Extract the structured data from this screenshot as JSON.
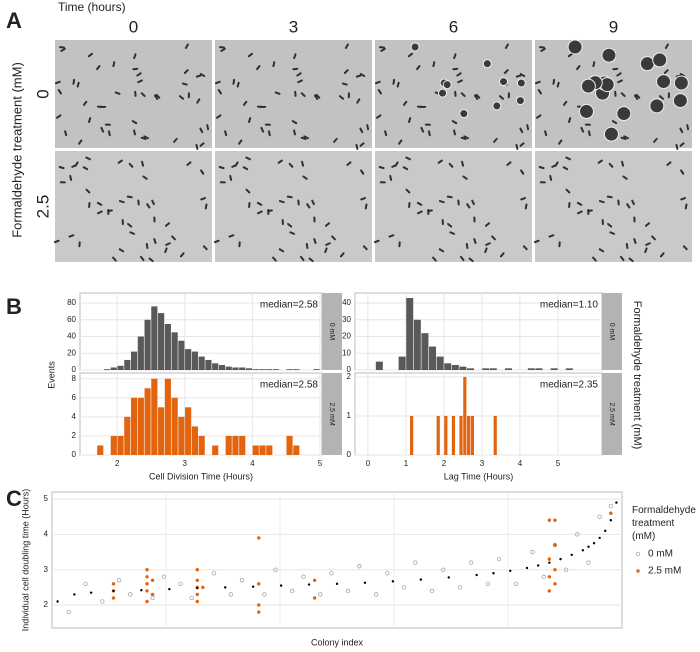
{
  "panel_a": {
    "label": "A",
    "x_title": "Time (hours)",
    "columns": [
      "0",
      "3",
      "6",
      "9"
    ],
    "y_title": "Formaldehyde treatment (mM)",
    "rows": [
      "0",
      "2.5"
    ]
  },
  "panel_b": {
    "label": "B",
    "y_label": "Events",
    "facet_title": "Formaldehyde treatment (mM)"
  },
  "panel_c": {
    "label": "C"
  },
  "chart_data": [
    {
      "type": "histogram",
      "facet": "0 mM",
      "annotation": "median=2.58",
      "color": "#595959",
      "bins": [
        1.6,
        1.7,
        1.8,
        1.9,
        2.0,
        2.1,
        2.2,
        2.3,
        2.4,
        2.5,
        2.6,
        2.7,
        2.8,
        2.9,
        3.0,
        3.1,
        3.2,
        3.3,
        3.4,
        3.5,
        3.6,
        3.7,
        3.8,
        3.9,
        4.0,
        4.1,
        4.2,
        4.3,
        4.4,
        4.5,
        4.6,
        4.7,
        4.8,
        4.9,
        5.0
      ],
      "values": [
        0,
        0,
        1,
        3,
        5,
        12,
        22,
        40,
        60,
        76,
        68,
        55,
        45,
        35,
        25,
        22,
        16,
        12,
        8,
        6,
        4,
        3,
        3,
        2,
        1,
        1,
        1,
        1,
        0,
        1,
        1,
        0,
        0,
        1
      ],
      "xlim": [
        1.45,
        5.03
      ],
      "xticks": [
        2,
        3,
        4,
        5
      ],
      "ylim": [
        0,
        92
      ],
      "yticks": [
        0,
        20,
        40,
        60,
        80
      ],
      "grid": true
    },
    {
      "type": "histogram",
      "facet": "2.5 mM",
      "annotation": "median=2.58",
      "color": "#e3640e",
      "x_label": "Cell Division Time (Hours)",
      "bins": [
        1.6,
        1.7,
        1.8,
        1.9,
        2.0,
        2.1,
        2.2,
        2.3,
        2.4,
        2.5,
        2.6,
        2.7,
        2.8,
        2.9,
        3.0,
        3.1,
        3.2,
        3.3,
        3.4,
        3.5,
        3.6,
        3.7,
        3.8,
        3.9,
        4.0,
        4.1,
        4.2,
        4.3,
        4.4,
        4.5,
        4.6,
        4.7,
        4.8,
        4.9,
        5.0
      ],
      "values": [
        0,
        1,
        0,
        2,
        2,
        4,
        6,
        6,
        7,
        8,
        5,
        8,
        6,
        4,
        5,
        3,
        2,
        0,
        1,
        0,
        2,
        2,
        2,
        0,
        1,
        1,
        1,
        0,
        0,
        2,
        1,
        0,
        0,
        0
      ],
      "xlim": [
        1.45,
        5.03
      ],
      "xticks": [
        2,
        3,
        4,
        5
      ],
      "ylim": [
        0,
        8.6
      ],
      "yticks": [
        0,
        2,
        4,
        6,
        8
      ],
      "grid": true
    },
    {
      "type": "histogram",
      "facet": "0 mM",
      "annotation": "median=1.10",
      "color": "#595959",
      "bins": [
        0.2,
        0.4,
        0.6,
        0.8,
        1.0,
        1.2,
        1.4,
        1.6,
        1.8,
        2.0,
        2.2,
        2.4,
        2.6,
        2.8,
        3.0,
        3.2,
        3.4,
        3.6,
        3.8,
        4.0,
        4.2,
        4.4,
        4.6,
        4.8,
        5.0,
        5.2,
        5.4
      ],
      "values": [
        5,
        0,
        0,
        8,
        43,
        30,
        22,
        14,
        8,
        4,
        3,
        2,
        1,
        0,
        1,
        1,
        0,
        1,
        0,
        0,
        1,
        1,
        0,
        1,
        0,
        1
      ],
      "xlim": [
        -0.34,
        6.16
      ],
      "xticks": [
        0,
        1,
        2,
        3,
        4,
        5
      ],
      "ylim": [
        0,
        46
      ],
      "yticks": [
        0,
        10,
        20,
        30,
        40
      ],
      "grid": true
    },
    {
      "type": "histogram",
      "facet": "2.5 mM",
      "annotation": "median=2.35",
      "color": "#e3640e",
      "x_label": "Lag Time (Hours)",
      "bins": [
        1.0,
        1.1,
        1.2,
        1.3,
        1.4,
        1.5,
        1.6,
        1.7,
        1.8,
        1.9,
        2.0,
        2.1,
        2.2,
        2.3,
        2.4,
        2.5,
        2.6,
        2.7,
        2.8,
        2.9,
        3.0,
        3.1,
        3.2,
        3.3,
        3.4,
        3.5
      ],
      "values": [
        0,
        1,
        0,
        0,
        0,
        0,
        0,
        0,
        1,
        0,
        1,
        0,
        1,
        0,
        1,
        2,
        1,
        1,
        0,
        0,
        0,
        0,
        0,
        1,
        0
      ],
      "xlim": [
        -0.34,
        6.16
      ],
      "xticks": [
        0,
        1,
        2,
        3,
        4,
        5
      ],
      "ylim": [
        0,
        2.1
      ],
      "yticks": [
        0,
        1,
        2
      ],
      "grid": true
    },
    {
      "type": "scatter",
      "x_label": "Colony index",
      "y_label": "Individual cell doubling time (Hours)",
      "legend_title": "Formaldehyde treatment (mM)",
      "xlim": [
        -1,
        101
      ],
      "ylim": [
        1.35,
        5.2
      ],
      "yticks": [
        2,
        3,
        4,
        5
      ],
      "grid": true,
      "legend": "right",
      "series": [
        {
          "name": "0 mM",
          "color": "#9a9a9a",
          "marker": "open",
          "x": [
            2,
            5,
            8,
            11,
            13,
            17,
            19,
            22,
            24,
            28,
            31,
            33,
            37,
            39,
            42,
            44,
            47,
            49,
            52,
            54,
            57,
            59,
            62,
            64,
            67,
            69,
            72,
            74,
            77,
            79,
            82,
            85,
            87,
            89,
            91,
            93,
            95,
            97,
            99
          ],
          "values": [
            1.8,
            2.6,
            2.1,
            2.7,
            2.3,
            2.2,
            2.8,
            2.6,
            2.2,
            2.9,
            2.3,
            2.7,
            2.3,
            3.0,
            2.4,
            2.8,
            2.3,
            2.9,
            2.4,
            3.1,
            2.3,
            2.9,
            2.5,
            3.2,
            2.4,
            3.0,
            2.5,
            3.2,
            2.6,
            3.3,
            2.6,
            3.5,
            2.8,
            3.7,
            3.0,
            4.0,
            3.2,
            4.5,
            4.8
          ]
        },
        {
          "name": "2.5 mM",
          "color": "#e3640e",
          "marker": "filled",
          "x": [
            10,
            10,
            10,
            16,
            16,
            16,
            16,
            16,
            17,
            17,
            25,
            25,
            25,
            25,
            25,
            26,
            36,
            36,
            36,
            36,
            46,
            46,
            88,
            88,
            88,
            88,
            89,
            89,
            89,
            89,
            99
          ],
          "values": [
            2.2,
            2.4,
            2.6,
            2.1,
            2.4,
            2.6,
            2.8,
            3.0,
            2.3,
            2.7,
            2.1,
            2.3,
            2.5,
            2.7,
            3.0,
            2.5,
            1.8,
            2.0,
            2.6,
            3.9,
            2.2,
            2.7,
            2.4,
            2.8,
            3.3,
            4.4,
            2.6,
            3.0,
            3.7,
            4.4,
            4.6
          ]
        },
        {
          "color": "#000000",
          "marker": "dot",
          "x": [
            0,
            3,
            6,
            10,
            15,
            20,
            25,
            30,
            35,
            40,
            45,
            50,
            55,
            60,
            65,
            70,
            75,
            78,
            81,
            84,
            86,
            88,
            90,
            92,
            94,
            95,
            96,
            97,
            98,
            99,
            100
          ],
          "values": [
            2.1,
            2.3,
            2.35,
            2.4,
            2.42,
            2.45,
            2.48,
            2.5,
            2.52,
            2.55,
            2.58,
            2.6,
            2.63,
            2.67,
            2.72,
            2.78,
            2.85,
            2.9,
            2.97,
            3.05,
            3.12,
            3.2,
            3.3,
            3.42,
            3.55,
            3.65,
            3.75,
            3.9,
            4.1,
            4.4,
            4.9
          ]
        }
      ]
    }
  ]
}
